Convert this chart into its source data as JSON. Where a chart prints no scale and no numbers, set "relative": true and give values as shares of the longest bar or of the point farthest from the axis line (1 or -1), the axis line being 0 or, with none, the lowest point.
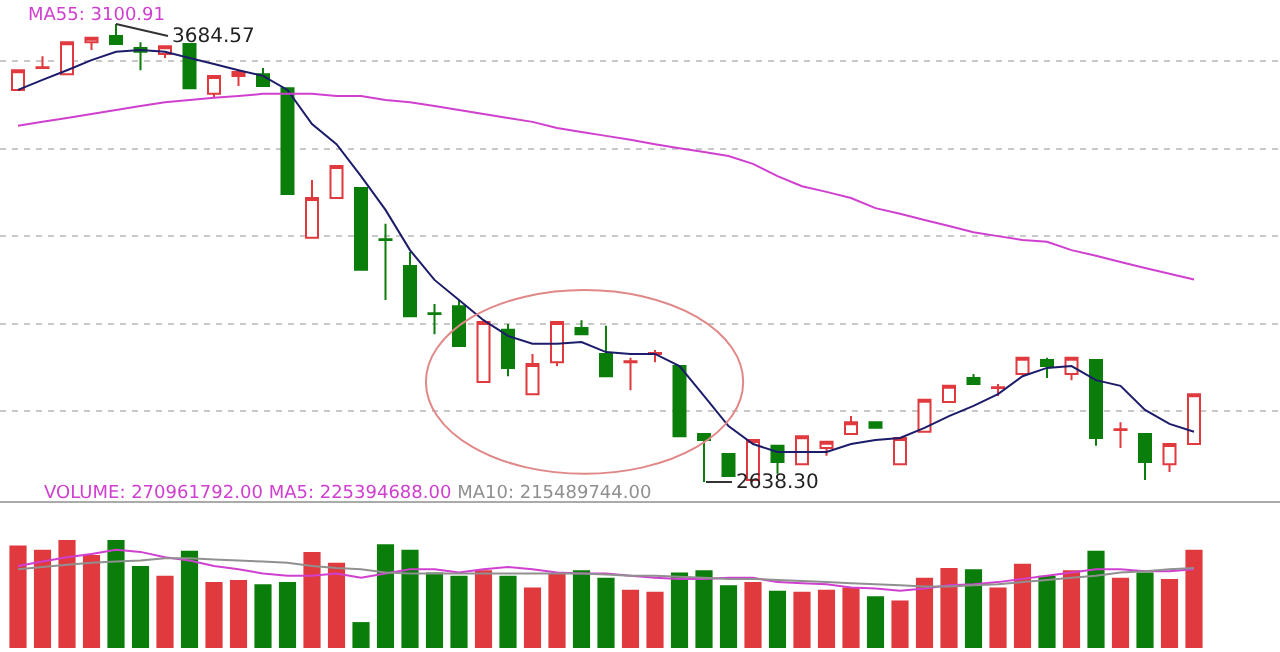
{
  "chart_data": [
    {
      "type": "candlestick",
      "categories": [
        null,
        null,
        null,
        null,
        null,
        null,
        null,
        null,
        null,
        null,
        null,
        null,
        null,
        null,
        null,
        null,
        null,
        null,
        null,
        null,
        null,
        null,
        null,
        null,
        null,
        null,
        null,
        null,
        null,
        null,
        null,
        null,
        null,
        null,
        null,
        null,
        null,
        null,
        null,
        null,
        null,
        null,
        null,
        null,
        null,
        null,
        null,
        null,
        null
      ],
      "ohlc": [
        [
          3534,
          3579,
          3534,
          3579
        ],
        [
          3584,
          3611,
          3584,
          3586
        ],
        [
          3570,
          3643,
          3570,
          3643
        ],
        [
          3643,
          3653,
          3625,
          3653
        ],
        [
          3657,
          3684.57,
          3639,
          3639
        ],
        [
          3630,
          3643,
          3579,
          3621
        ],
        [
          3616,
          3634,
          3607,
          3634
        ],
        [
          3639,
          3639,
          3538,
          3538
        ],
        [
          3525,
          3566,
          3515,
          3566
        ],
        [
          3566,
          3575,
          3543,
          3575
        ],
        [
          3570,
          3584,
          3543,
          3543
        ],
        [
          3538,
          3538,
          3296,
          3296
        ],
        [
          3196,
          3328,
          3196,
          3287
        ],
        [
          3287,
          3360,
          3287,
          3360
        ],
        [
          3310,
          3310,
          3123,
          3123
        ],
        [
          3193,
          3228,
          3054,
          3191
        ],
        [
          3132,
          3164,
          3017,
          3017
        ],
        [
          3024,
          3045,
          2976,
          3022
        ],
        [
          3040,
          3054,
          2949,
          2949
        ],
        [
          2867,
          3004,
          2867,
          3004
        ],
        [
          2986,
          2999,
          2880,
          2899
        ],
        [
          2839,
          2931,
          2839,
          2908
        ],
        [
          2912,
          3004,
          2903,
          3004
        ],
        [
          2990,
          3008,
          2976,
          2976
        ],
        [
          2931,
          2995,
          2880,
          2880
        ],
        [
          2912,
          2922,
          2848,
          2914
        ],
        [
          2931,
          2940,
          2912,
          2933
        ],
        [
          2903,
          2903,
          2743,
          2743
        ],
        [
          2748,
          2748,
          2638.3,
          2734
        ],
        [
          2702,
          2702,
          2652,
          2652
        ],
        [
          2643,
          2734,
          2643,
          2734
        ],
        [
          2721,
          2721,
          2657,
          2684
        ],
        [
          2679,
          2743,
          2679,
          2743
        ],
        [
          2716,
          2730,
          2698,
          2730
        ],
        [
          2748,
          2789,
          2748,
          2775
        ],
        [
          2775,
          2775,
          2762,
          2762
        ],
        [
          2679,
          2739,
          2679,
          2739
        ],
        [
          2753,
          2826,
          2753,
          2826
        ],
        [
          2821,
          2858,
          2821,
          2858
        ],
        [
          2876,
          2885,
          2862,
          2862
        ],
        [
          2853,
          2862,
          2835,
          2855
        ],
        [
          2885,
          2922,
          2885,
          2922
        ],
        [
          2917,
          2922,
          2876,
          2903
        ],
        [
          2885,
          2922,
          2871,
          2922
        ],
        [
          2917,
          2917,
          2721,
          2739
        ],
        [
          2757,
          2775,
          2716,
          2759
        ],
        [
          2748,
          2748,
          2643,
          2684
        ],
        [
          2679,
          2725,
          2661,
          2725
        ],
        [
          2725,
          2839,
          2725,
          2839
        ]
      ],
      "colors": [
        "#e0393e",
        "#e0393e",
        "#e0393e",
        "#e0393e",
        "#0a7d0a",
        "#0a7d0a",
        "#e0393e",
        "#0a7d0a",
        "#e0393e",
        "#e0393e",
        "#0a7d0a",
        "#0a7d0a",
        "#e0393e",
        "#e0393e",
        "#0a7d0a",
        "#0a7d0a",
        "#0a7d0a",
        "#0a7d0a",
        "#0a7d0a",
        "#e0393e",
        "#0a7d0a",
        "#e0393e",
        "#e0393e",
        "#0a7d0a",
        "#0a7d0a",
        "#e0393e",
        "#e0393e",
        "#0a7d0a",
        "#0a7d0a",
        "#0a7d0a",
        "#e0393e",
        "#0a7d0a",
        "#e0393e",
        "#e0393e",
        "#e0393e",
        "#0a7d0a",
        "#e0393e",
        "#e0393e",
        "#e0393e",
        "#0a7d0a",
        "#e0393e",
        "#e0393e",
        "#0a7d0a",
        "#e0393e",
        "#0a7d0a",
        "#e0393e",
        "#0a7d0a",
        "#e0393e",
        "#e0393e"
      ],
      "series": [
        {
          "type": "line",
          "color": "#1c1c6b",
          "values": [
            3534,
            3557,
            3579,
            3602,
            3621,
            3625,
            3621,
            3607,
            3593,
            3579,
            3566,
            3534,
            3456,
            3410,
            3337,
            3260,
            3168,
            3100,
            3054,
            3008,
            2972,
            2954,
            2954,
            2958,
            2935,
            2931,
            2931,
            2903,
            2835,
            2766,
            2725,
            2707,
            2707,
            2707,
            2725,
            2734,
            2739,
            2762,
            2789,
            2812,
            2839,
            2880,
            2899,
            2903,
            2871,
            2858,
            2803,
            2771,
            2753
          ]
        },
        {
          "type": "line",
          "name": "MA55: 3100.91",
          "color": "#d040d0",
          "values": [
            3452,
            3461,
            3470,
            3479,
            3488,
            3497,
            3506,
            3511,
            3516,
            3520,
            3525,
            3525,
            3525,
            3520,
            3520,
            3511,
            3506,
            3497,
            3488,
            3479,
            3470,
            3461,
            3447,
            3438,
            3429,
            3420,
            3410,
            3401,
            3392,
            3383,
            3365,
            3337,
            3314,
            3301,
            3287,
            3264,
            3251,
            3237,
            3223,
            3209,
            3200,
            3191,
            3187,
            3168,
            3155,
            3141,
            3127,
            3114,
            3101
          ]
        }
      ],
      "annotations": [
        "3684.57",
        "2638.30"
      ],
      "grid": "y",
      "tick_labels": false
    },
    {
      "type": "bar",
      "relative": true,
      "title": "VOLUME: 270961792.00",
      "categories": [
        null,
        null,
        null,
        null,
        null,
        null,
        null,
        null,
        null,
        null,
        null,
        null,
        null,
        null,
        null,
        null,
        null,
        null,
        null,
        null,
        null,
        null,
        null,
        null,
        null,
        null,
        null,
        null,
        null,
        null,
        null,
        null,
        null,
        null,
        null,
        null,
        null,
        null,
        null,
        null,
        null,
        null,
        null,
        null,
        null,
        null,
        null,
        null,
        null
      ],
      "series": [
        {
          "type": "bar",
          "colors": [
            "#e0393e",
            "#e0393e",
            "#e0393e",
            "#e0393e",
            "#0a7d0a",
            "#0a7d0a",
            "#e0393e",
            "#0a7d0a",
            "#e0393e",
            "#e0393e",
            "#0a7d0a",
            "#0a7d0a",
            "#e0393e",
            "#e0393e",
            "#0a7d0a",
            "#0a7d0a",
            "#0a7d0a",
            "#0a7d0a",
            "#0a7d0a",
            "#e0393e",
            "#0a7d0a",
            "#e0393e",
            "#e0393e",
            "#0a7d0a",
            "#0a7d0a",
            "#e0393e",
            "#e0393e",
            "#0a7d0a",
            "#0a7d0a",
            "#0a7d0a",
            "#e0393e",
            "#0a7d0a",
            "#e0393e",
            "#e0393e",
            "#e0393e",
            "#0a7d0a",
            "#e0393e",
            "#e0393e",
            "#e0393e",
            "#0a7d0a",
            "#e0393e",
            "#e0393e",
            "#0a7d0a",
            "#e0393e",
            "#0a7d0a",
            "#e0393e",
            "#0a7d0a",
            "#e0393e",
            "#e0393e"
          ],
          "values": [
            0.95,
            0.91,
            1,
            0.86,
            1,
            0.76,
            0.67,
            0.9,
            0.61,
            0.63,
            0.59,
            0.61,
            0.89,
            0.79,
            0.24,
            0.96,
            0.91,
            0.7,
            0.67,
            0.72,
            0.67,
            0.56,
            0.69,
            0.72,
            0.65,
            0.54,
            0.52,
            0.7,
            0.72,
            0.58,
            0.61,
            0.53,
            0.52,
            0.54,
            0.56,
            0.48,
            0.44,
            0.65,
            0.74,
            0.73,
            0.56,
            0.78,
            0.67,
            0.72,
            0.9,
            0.65,
            0.7,
            0.64,
            0.91
          ]
        },
        {
          "type": "line",
          "name": "MA5: 225394688.00",
          "color": "#d040d0",
          "values": [
            0.76,
            0.8,
            0.84,
            0.87,
            0.91,
            0.89,
            0.84,
            0.81,
            0.76,
            0.73,
            0.69,
            0.67,
            0.67,
            0.69,
            0.65,
            0.69,
            0.73,
            0.73,
            0.7,
            0.73,
            0.75,
            0.73,
            0.7,
            0.69,
            0.69,
            0.67,
            0.65,
            0.64,
            0.64,
            0.65,
            0.65,
            0.61,
            0.6,
            0.59,
            0.56,
            0.55,
            0.53,
            0.55,
            0.58,
            0.59,
            0.61,
            0.64,
            0.67,
            0.7,
            0.73,
            0.73,
            0.71,
            0.71,
            0.73
          ]
        },
        {
          "type": "line",
          "name": "MA10: 215489744.00",
          "color": "#909090",
          "values": [
            0.73,
            0.75,
            0.77,
            0.79,
            0.8,
            0.81,
            0.83,
            0.83,
            0.82,
            0.81,
            0.8,
            0.79,
            0.76,
            0.74,
            0.73,
            0.7,
            0.69,
            0.69,
            0.69,
            0.69,
            0.69,
            0.69,
            0.69,
            0.69,
            0.68,
            0.67,
            0.67,
            0.66,
            0.65,
            0.64,
            0.64,
            0.63,
            0.62,
            0.61,
            0.6,
            0.59,
            0.58,
            0.57,
            0.57,
            0.58,
            0.59,
            0.61,
            0.63,
            0.65,
            0.67,
            0.7,
            0.71,
            0.73,
            0.74
          ]
        }
      ],
      "tick_labels": false
    }
  ]
}
